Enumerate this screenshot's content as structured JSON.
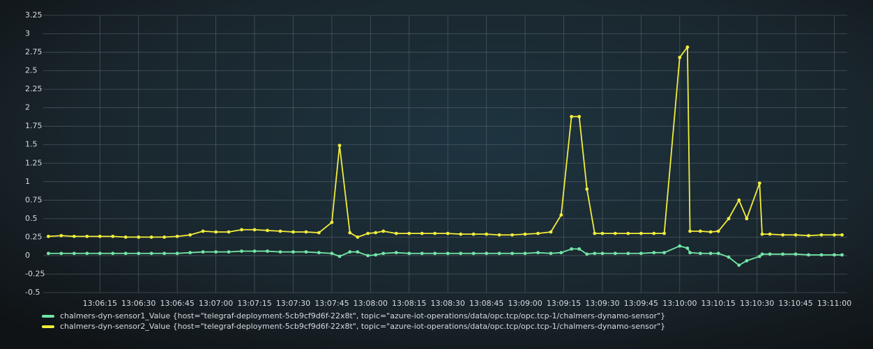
{
  "chart_data": {
    "type": "line",
    "x": [
      "13:05:55",
      "13:06:00",
      "13:06:05",
      "13:06:10",
      "13:06:15",
      "13:06:20",
      "13:06:25",
      "13:06:30",
      "13:06:35",
      "13:06:40",
      "13:06:45",
      "13:06:50",
      "13:06:55",
      "13:07:00",
      "13:07:05",
      "13:07:10",
      "13:07:15",
      "13:07:20",
      "13:07:25",
      "13:07:30",
      "13:07:35",
      "13:07:40",
      "13:07:45",
      "13:07:48",
      "13:07:52",
      "13:07:55",
      "13:07:59",
      "13:08:02",
      "13:08:05",
      "13:08:10",
      "13:08:15",
      "13:08:20",
      "13:08:25",
      "13:08:30",
      "13:08:35",
      "13:08:40",
      "13:08:45",
      "13:08:50",
      "13:08:55",
      "13:09:00",
      "13:09:05",
      "13:09:10",
      "13:09:14",
      "13:09:18",
      "13:09:21",
      "13:09:24",
      "13:09:27",
      "13:09:30",
      "13:09:35",
      "13:09:40",
      "13:09:45",
      "13:09:50",
      "13:09:54",
      "13:10:00",
      "13:10:03",
      "13:10:04",
      "13:10:08",
      "13:10:12",
      "13:10:15",
      "13:10:19",
      "13:10:23",
      "13:10:26",
      "13:10:31",
      "13:10:32",
      "13:10:35",
      "13:10:40",
      "13:10:45",
      "13:10:50",
      "13:10:55",
      "13:11:00",
      "13:11:03"
    ],
    "series": [
      {
        "name": "chalmers-dyn-sensor1_Value {host=\"telegraf-deployment-5cb9cf9d6f-22x8t\", topic=\"azure-iot-operations/data/opc.tcp/opc.tcp-1/chalmers-dynamo-sensor\"}",
        "color": "#73e6a6",
        "values": [
          0.03,
          0.03,
          0.03,
          0.03,
          0.03,
          0.03,
          0.03,
          0.03,
          0.03,
          0.03,
          0.03,
          0.04,
          0.05,
          0.05,
          0.05,
          0.06,
          0.06,
          0.06,
          0.05,
          0.05,
          0.05,
          0.04,
          0.03,
          -0.01,
          0.05,
          0.05,
          0.0,
          0.01,
          0.03,
          0.04,
          0.03,
          0.03,
          0.03,
          0.03,
          0.03,
          0.03,
          0.03,
          0.03,
          0.03,
          0.03,
          0.04,
          0.03,
          0.04,
          0.09,
          0.09,
          0.02,
          0.03,
          0.03,
          0.03,
          0.03,
          0.03,
          0.04,
          0.04,
          0.13,
          0.1,
          0.04,
          0.03,
          0.03,
          0.03,
          -0.02,
          -0.13,
          -0.07,
          -0.01,
          0.02,
          0.02,
          0.02,
          0.02,
          0.01,
          0.01,
          0.01,
          0.01
        ]
      },
      {
        "name": "chalmers-dyn-sensor2_Value {host=\"telegraf-deployment-5cb9cf9d6f-22x8t\", topic=\"azure-iot-operations/data/opc.tcp/opc.tcp-1/chalmers-dynamo-sensor\"}",
        "color": "#f2ee3c",
        "values": [
          0.26,
          0.27,
          0.26,
          0.26,
          0.26,
          0.26,
          0.25,
          0.25,
          0.25,
          0.25,
          0.26,
          0.28,
          0.33,
          0.32,
          0.32,
          0.35,
          0.35,
          0.34,
          0.33,
          0.32,
          0.32,
          0.31,
          0.45,
          1.49,
          0.31,
          0.25,
          0.3,
          0.31,
          0.33,
          0.3,
          0.3,
          0.3,
          0.3,
          0.3,
          0.29,
          0.29,
          0.29,
          0.28,
          0.28,
          0.29,
          0.3,
          0.32,
          0.55,
          1.88,
          1.88,
          0.9,
          0.3,
          0.3,
          0.3,
          0.3,
          0.3,
          0.3,
          0.3,
          2.68,
          2.82,
          0.33,
          0.33,
          0.32,
          0.33,
          0.5,
          0.75,
          0.5,
          0.98,
          0.29,
          0.29,
          0.28,
          0.28,
          0.27,
          0.28,
          0.28,
          0.28
        ]
      }
    ],
    "xlim": [
      "13:05:53",
      "13:11:05"
    ],
    "xticks": [
      "13:06:15",
      "13:06:30",
      "13:06:45",
      "13:07:00",
      "13:07:15",
      "13:07:30",
      "13:07:45",
      "13:08:00",
      "13:08:15",
      "13:08:30",
      "13:08:45",
      "13:09:00",
      "13:09:15",
      "13:09:30",
      "13:09:45",
      "13:10:00",
      "13:10:15",
      "13:10:30",
      "13:10:45",
      "13:11:00"
    ],
    "ylim": [
      -0.5,
      3.25
    ],
    "yticks": [
      -0.5,
      -0.25,
      0,
      0.25,
      0.5,
      0.75,
      1,
      1.25,
      1.5,
      1.75,
      2,
      2.25,
      2.5,
      2.75,
      3,
      3.25
    ],
    "grid": true,
    "legend": "bottom-left"
  }
}
